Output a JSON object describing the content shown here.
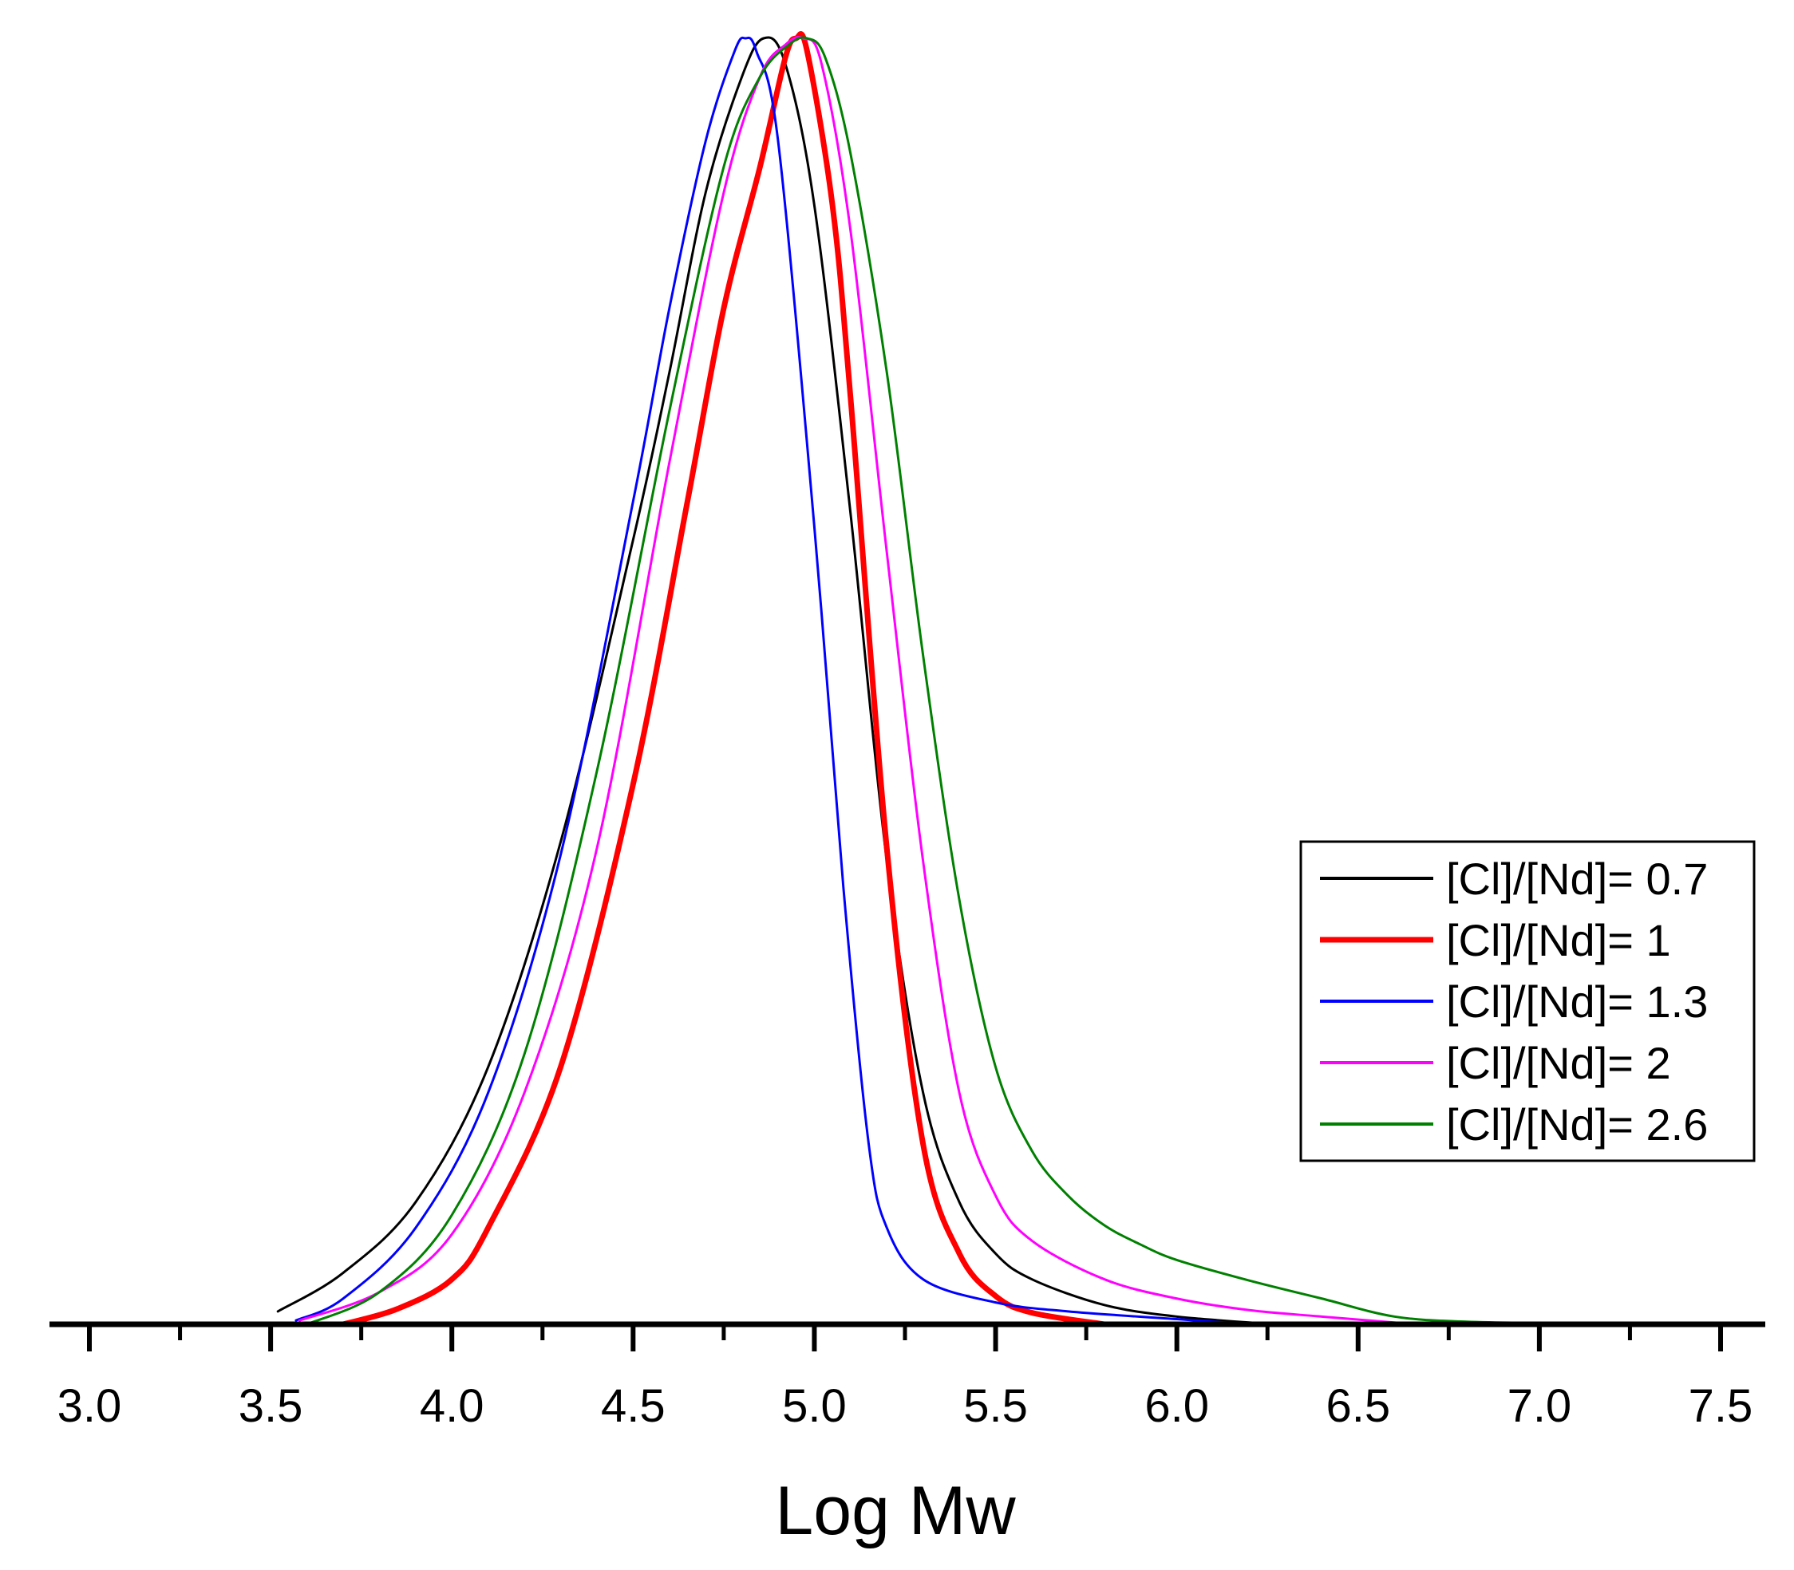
{
  "chart_data": {
    "type": "line",
    "title": "",
    "xlabel": "Log Mw",
    "ylabel": "",
    "xlim": [
      2.9,
      7.55
    ],
    "ylim": [
      0,
      1
    ],
    "major_ticks": [
      "3.0",
      "3.5",
      "4.0",
      "4.5",
      "5.0",
      "5.5",
      "6.0",
      "6.5",
      "7.0",
      "7.5"
    ],
    "legend_position": "center-right",
    "series": [
      {
        "name": "[Cl]/[Nd]= 0.7",
        "color": "#000000",
        "line_width": 3,
        "points": [
          [
            3.52,
            0.01
          ],
          [
            3.7,
            0.04
          ],
          [
            3.9,
            0.095
          ],
          [
            4.1,
            0.2
          ],
          [
            4.3,
            0.375
          ],
          [
            4.5,
            0.61
          ],
          [
            4.6,
            0.74
          ],
          [
            4.7,
            0.88
          ],
          [
            4.8,
            0.97
          ],
          [
            4.86,
            1.0
          ],
          [
            4.92,
            0.98
          ],
          [
            5.0,
            0.87
          ],
          [
            5.1,
            0.63
          ],
          [
            5.2,
            0.36
          ],
          [
            5.3,
            0.18
          ],
          [
            5.4,
            0.095
          ],
          [
            5.5,
            0.055
          ],
          [
            5.6,
            0.035
          ],
          [
            5.8,
            0.015
          ],
          [
            6.0,
            0.006
          ],
          [
            6.27,
            0.0
          ]
        ]
      },
      {
        "name": "[Cl]/[Nd]= 1",
        "color": "#ff0000",
        "line_width": 7,
        "points": [
          [
            3.7,
            0.0
          ],
          [
            3.85,
            0.012
          ],
          [
            4.0,
            0.035
          ],
          [
            4.1,
            0.075
          ],
          [
            4.3,
            0.2
          ],
          [
            4.5,
            0.42
          ],
          [
            4.65,
            0.64
          ],
          [
            4.75,
            0.79
          ],
          [
            4.85,
            0.9
          ],
          [
            4.92,
            0.985
          ],
          [
            4.95,
            1.0
          ],
          [
            4.98,
            0.99
          ],
          [
            5.05,
            0.87
          ],
          [
            5.1,
            0.72
          ],
          [
            5.2,
            0.37
          ],
          [
            5.3,
            0.14
          ],
          [
            5.4,
            0.055
          ],
          [
            5.5,
            0.022
          ],
          [
            5.6,
            0.009
          ],
          [
            5.8,
            0.0
          ]
        ]
      },
      {
        "name": "[Cl]/[Nd]= 1.3",
        "color": "#0000ff",
        "line_width": 3,
        "points": [
          [
            3.57,
            0.003
          ],
          [
            3.7,
            0.02
          ],
          [
            3.9,
            0.075
          ],
          [
            4.1,
            0.18
          ],
          [
            4.3,
            0.365
          ],
          [
            4.5,
            0.64
          ],
          [
            4.6,
            0.79
          ],
          [
            4.7,
            0.92
          ],
          [
            4.78,
            0.99
          ],
          [
            4.81,
            1.0
          ],
          [
            4.84,
            0.99
          ],
          [
            4.9,
            0.92
          ],
          [
            5.0,
            0.62
          ],
          [
            5.08,
            0.34
          ],
          [
            5.15,
            0.14
          ],
          [
            5.2,
            0.075
          ],
          [
            5.3,
            0.035
          ],
          [
            5.5,
            0.017
          ],
          [
            5.7,
            0.01
          ],
          [
            6.0,
            0.004
          ],
          [
            6.2,
            0.0
          ]
        ]
      },
      {
        "name": "[Cl]/[Nd]= 2",
        "color": "#ff00ff",
        "line_width": 3,
        "points": [
          [
            3.58,
            0.003
          ],
          [
            3.8,
            0.025
          ],
          [
            4.0,
            0.07
          ],
          [
            4.2,
            0.18
          ],
          [
            4.4,
            0.37
          ],
          [
            4.6,
            0.67
          ],
          [
            4.75,
            0.88
          ],
          [
            4.85,
            0.97
          ],
          [
            4.92,
            0.995
          ],
          [
            4.97,
            1.0
          ],
          [
            5.02,
            0.98
          ],
          [
            5.1,
            0.85
          ],
          [
            5.2,
            0.6
          ],
          [
            5.3,
            0.36
          ],
          [
            5.4,
            0.18
          ],
          [
            5.5,
            0.1
          ],
          [
            5.6,
            0.065
          ],
          [
            5.8,
            0.035
          ],
          [
            6.0,
            0.02
          ],
          [
            6.2,
            0.011
          ],
          [
            6.4,
            0.006
          ],
          [
            6.66,
            0.0
          ]
        ]
      },
      {
        "name": "[Cl]/[Nd]= 2.6",
        "color": "#008000",
        "line_width": 3,
        "points": [
          [
            3.6,
            0.0
          ],
          [
            3.8,
            0.025
          ],
          [
            4.0,
            0.085
          ],
          [
            4.2,
            0.21
          ],
          [
            4.4,
            0.43
          ],
          [
            4.6,
            0.71
          ],
          [
            4.75,
            0.9
          ],
          [
            4.85,
            0.97
          ],
          [
            4.93,
            0.995
          ],
          [
            4.98,
            1.0
          ],
          [
            5.03,
            0.985
          ],
          [
            5.1,
            0.91
          ],
          [
            5.2,
            0.74
          ],
          [
            5.3,
            0.52
          ],
          [
            5.4,
            0.33
          ],
          [
            5.5,
            0.2
          ],
          [
            5.6,
            0.135
          ],
          [
            5.7,
            0.1
          ],
          [
            5.8,
            0.077
          ],
          [
            5.9,
            0.062
          ],
          [
            6.0,
            0.05
          ],
          [
            6.2,
            0.034
          ],
          [
            6.4,
            0.02
          ],
          [
            6.6,
            0.006
          ],
          [
            6.8,
            0.002
          ],
          [
            7.0,
            0.001
          ]
        ]
      }
    ]
  }
}
